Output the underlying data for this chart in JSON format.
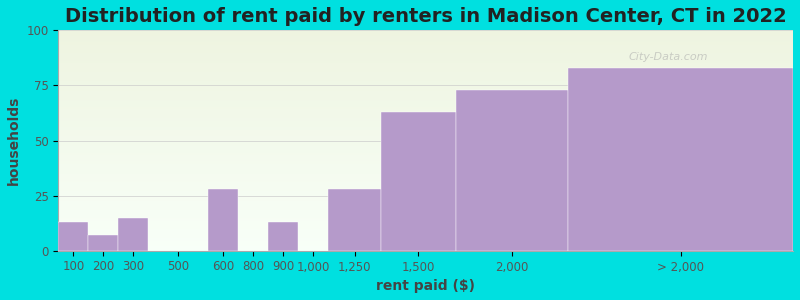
{
  "title": "Distribution of rent paid by renters in Madison Center, CT in 2022",
  "xlabel": "rent paid ($)",
  "ylabel": "households",
  "bar_labels": [
    "100",
    "200",
    "300",
    "500",
    "600",
    "800",
    "900",
    "1,000",
    "1,250",
    "1,500",
    "2,000",
    "> 2,000"
  ],
  "bar_values": [
    13,
    7,
    15,
    0,
    28,
    0,
    13,
    0,
    28,
    63,
    73,
    83
  ],
  "bar_edges": [
    50,
    150,
    250,
    350,
    550,
    650,
    750,
    850,
    950,
    1125,
    1375,
    1750,
    2500
  ],
  "bar_color": "#b59aca",
  "ylim": [
    0,
    100
  ],
  "yticks": [
    0,
    25,
    50,
    75,
    100
  ],
  "background_outer": "#00e0e0",
  "background_grad_top": "#eef4e0",
  "background_grad_bottom": "#f8fff8",
  "title_fontsize": 14,
  "axis_label_fontsize": 10,
  "tick_fontsize": 8.5,
  "watermark": "City-Data.com"
}
